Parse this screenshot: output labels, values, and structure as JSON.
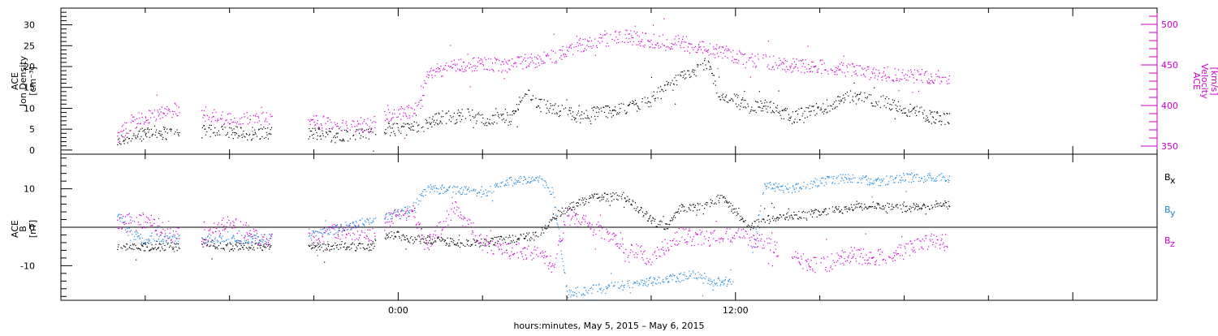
{
  "chart_data": [
    {
      "id": "top",
      "type": "scatter",
      "ylabel_lines": [
        "ACE",
        "Ion Density",
        "[cm⁻³]"
      ],
      "ylabel_right_lines": [
        "ACE",
        "Velocity",
        "[km/s]"
      ],
      "yticks": [
        0,
        5,
        10,
        15,
        20,
        25,
        30
      ],
      "ylim": [
        -1,
        34
      ],
      "yticks_right": [
        350,
        400,
        450,
        500
      ],
      "ylim_right": [
        340,
        520
      ],
      "right_axis_color": "#cc00cc",
      "series": [
        {
          "key": "density",
          "color": "#000000",
          "axis": "left",
          "anchors": [
            [
              -10,
              2
            ],
            [
              -9.5,
              3.5
            ],
            [
              -9,
              4.5
            ],
            [
              -8,
              4
            ],
            [
              -7,
              4.5
            ],
            [
              -6,
              4.5
            ],
            [
              -5.5,
              4
            ],
            [
              -4.5,
              4
            ],
            [
              -3,
              4
            ],
            [
              -2,
              3.8
            ],
            [
              -1,
              3.6
            ],
            [
              -0.5,
              5
            ],
            [
              0,
              5
            ],
            [
              0.5,
              5.5
            ],
            [
              1,
              6
            ],
            [
              1.5,
              8
            ],
            [
              2,
              8
            ],
            [
              2.5,
              9
            ],
            [
              3,
              7
            ],
            [
              3.5,
              8
            ],
            [
              4,
              7.5
            ],
            [
              4.5,
              14
            ],
            [
              5,
              11
            ],
            [
              5.5,
              10
            ],
            [
              6,
              9
            ],
            [
              6.5,
              8
            ],
            [
              7,
              9
            ],
            [
              8,
              10
            ],
            [
              9,
              12
            ],
            [
              9.5,
              15
            ],
            [
              10,
              17
            ],
            [
              10.5,
              19
            ],
            [
              11,
              21
            ],
            [
              11.5,
              12
            ],
            [
              12,
              12
            ],
            [
              12.5,
              10
            ],
            [
              13,
              11
            ],
            [
              14,
              8
            ],
            [
              15,
              10
            ],
            [
              16,
              13
            ],
            [
              17,
              12
            ],
            [
              18,
              10
            ],
            [
              19,
              8
            ],
            [
              20,
              7
            ]
          ],
          "segments": [
            [
              -10,
              -9
            ],
            [
              -9,
              -7.8
            ],
            [
              -7,
              -4.5
            ],
            [
              -3.2,
              -0.8
            ],
            [
              -0.5,
              19.6
            ]
          ],
          "noise": 1.6
        },
        {
          "key": "velocity",
          "color": "#cc00cc",
          "axis": "right",
          "anchors": [
            [
              -10,
              360
            ],
            [
              -9.5,
              380
            ],
            [
              -8.5,
              390
            ],
            [
              -8,
              395
            ],
            [
              -7,
              390
            ],
            [
              -6,
              385
            ],
            [
              -5,
              385
            ],
            [
              -3,
              380
            ],
            [
              -2,
              378
            ],
            [
              -1,
              376
            ],
            [
              -0.5,
              385
            ],
            [
              0,
              390
            ],
            [
              0.5,
              395
            ],
            [
              0.8,
              400
            ],
            [
              1,
              440
            ],
            [
              1.5,
              445
            ],
            [
              2,
              450
            ],
            [
              3,
              452
            ],
            [
              4,
              450
            ],
            [
              4.5,
              455
            ],
            [
              5,
              457
            ],
            [
              5.5,
              460
            ],
            [
              6,
              470
            ],
            [
              7,
              480
            ],
            [
              8,
              485
            ],
            [
              9,
              480
            ],
            [
              10,
              478
            ],
            [
              10.5,
              475
            ],
            [
              11,
              470
            ],
            [
              12,
              460
            ],
            [
              13,
              455
            ],
            [
              14,
              450
            ],
            [
              15,
              448
            ],
            [
              16,
              445
            ],
            [
              17,
              440
            ],
            [
              18,
              438
            ],
            [
              19,
              436
            ],
            [
              20,
              435
            ]
          ],
          "segments": [
            [
              -10,
              -9
            ],
            [
              -9,
              -7.8
            ],
            [
              -7,
              -4.5
            ],
            [
              -3.2,
              -0.8
            ],
            [
              -0.5,
              19.6
            ]
          ],
          "noise": 9
        }
      ]
    },
    {
      "id": "bottom",
      "type": "scatter",
      "ylabel_lines": [
        "ACE",
        "B",
        "[nT]"
      ],
      "yticks": [
        -10,
        0,
        10
      ],
      "ylim": [
        -19,
        19
      ],
      "zero_line": true,
      "legend": [
        {
          "label": "B",
          "sub": "x",
          "color": "#000000"
        },
        {
          "label": "B",
          "sub": "y",
          "color": "#1a88dd"
        },
        {
          "label": "B",
          "sub": "z",
          "color": "#cc00cc"
        }
      ],
      "series": [
        {
          "key": "bx",
          "color": "#000000",
          "anchors": [
            [
              -10,
              -5
            ],
            [
              -8,
              -5
            ],
            [
              -7,
              -4
            ],
            [
              -6,
              -5
            ],
            [
              -5,
              -5
            ],
            [
              -4,
              -5
            ],
            [
              -3,
              -5
            ],
            [
              -2,
              -5
            ],
            [
              -1,
              -5
            ],
            [
              -0.5,
              -2
            ],
            [
              0,
              -2
            ],
            [
              0.5,
              -3
            ],
            [
              1,
              -3
            ],
            [
              2,
              -4
            ],
            [
              3,
              -4
            ],
            [
              4,
              -3
            ],
            [
              5,
              -2
            ],
            [
              5.5,
              3
            ],
            [
              6,
              5
            ],
            [
              7,
              8
            ],
            [
              8,
              8
            ],
            [
              8.5,
              5
            ],
            [
              9,
              2
            ],
            [
              9.5,
              0
            ],
            [
              10,
              5
            ],
            [
              11,
              6
            ],
            [
              11.5,
              8
            ],
            [
              12,
              4
            ],
            [
              12.5,
              0
            ],
            [
              13,
              2
            ],
            [
              14,
              3
            ],
            [
              15,
              4
            ],
            [
              16,
              5
            ],
            [
              17,
              6
            ],
            [
              18,
              5
            ],
            [
              19,
              6
            ],
            [
              20,
              6
            ]
          ],
          "segments": [
            [
              -10,
              -9
            ],
            [
              -9,
              -7.8
            ],
            [
              -7,
              -4.5
            ],
            [
              -3.2,
              -0.8
            ],
            [
              -0.5,
              19.6
            ]
          ],
          "noise": 1.1
        },
        {
          "key": "by",
          "color": "#1a88dd",
          "anchors": [
            [
              -10,
              3
            ],
            [
              -9.5,
              -2
            ],
            [
              -9,
              -3
            ],
            [
              -8,
              -3
            ],
            [
              -7,
              -3
            ],
            [
              -6,
              -3
            ],
            [
              -5,
              -3
            ],
            [
              -3,
              -2
            ],
            [
              -2,
              0
            ],
            [
              -1,
              2
            ],
            [
              0,
              4
            ],
            [
              0.5,
              5
            ],
            [
              1,
              10
            ],
            [
              2,
              10
            ],
            [
              3,
              9
            ],
            [
              4,
              12
            ],
            [
              5,
              13
            ],
            [
              5.5,
              9
            ],
            [
              6,
              -17
            ],
            [
              7,
              -16
            ],
            [
              8,
              -15
            ],
            [
              9,
              -14
            ],
            [
              10,
              -13
            ],
            [
              10.5,
              -12
            ],
            [
              11,
              -14
            ],
            [
              12,
              -14
            ],
            [
              12.5,
              -11
            ],
            [
              13,
              11
            ],
            [
              14,
              10
            ],
            [
              15,
              12
            ],
            [
              16,
              13
            ],
            [
              17,
              12
            ],
            [
              18,
              13
            ],
            [
              19,
              13
            ],
            [
              20,
              13
            ]
          ],
          "segments": [
            [
              -10,
              -9
            ],
            [
              -9,
              -7.8
            ],
            [
              -7,
              -4.5
            ],
            [
              -3.2,
              -0.8
            ],
            [
              -0.5,
              11.9
            ],
            [
              12.6,
              19.6
            ]
          ],
          "noise": 1.2
        },
        {
          "key": "bz",
          "color": "#cc00cc",
          "anchors": [
            [
              -10,
              2
            ],
            [
              -9.5,
              1
            ],
            [
              -9,
              2
            ],
            [
              -8,
              -2
            ],
            [
              -7,
              -3
            ],
            [
              -6,
              2
            ],
            [
              -5,
              -3
            ],
            [
              -4,
              -3
            ],
            [
              -3,
              -2
            ],
            [
              -2,
              -1
            ],
            [
              -1,
              -2
            ],
            [
              0,
              4
            ],
            [
              0.5,
              4
            ],
            [
              1,
              -5
            ],
            [
              2,
              5
            ],
            [
              3,
              -4
            ],
            [
              4,
              -6
            ],
            [
              5,
              -7
            ],
            [
              5.5,
              -10
            ],
            [
              6,
              3
            ],
            [
              7,
              0
            ],
            [
              8,
              -5
            ],
            [
              9,
              -8
            ],
            [
              10,
              -2
            ],
            [
              11,
              -3
            ],
            [
              12,
              -2
            ],
            [
              13,
              -4
            ],
            [
              14,
              -8
            ],
            [
              15,
              -10
            ],
            [
              16,
              -7
            ],
            [
              17,
              -8
            ],
            [
              18,
              -6
            ],
            [
              19,
              -3
            ],
            [
              20,
              -5
            ]
          ],
          "segments": [
            [
              -10,
              -9
            ],
            [
              -9,
              -7.8
            ],
            [
              -7,
              -4.5
            ],
            [
              -3.2,
              -0.8
            ],
            [
              -0.5,
              13.5
            ],
            [
              14,
              19.6
            ]
          ],
          "noise": 2.2
        }
      ]
    }
  ],
  "xaxis": {
    "xlim": [
      -12,
      27
    ],
    "tick_labels": [
      {
        "x": 0,
        "label": "0:00"
      },
      {
        "x": 12,
        "label": "12:00"
      }
    ],
    "xlabel": "hours:minutes,  May  5, 2015 – May  6, 2015"
  }
}
